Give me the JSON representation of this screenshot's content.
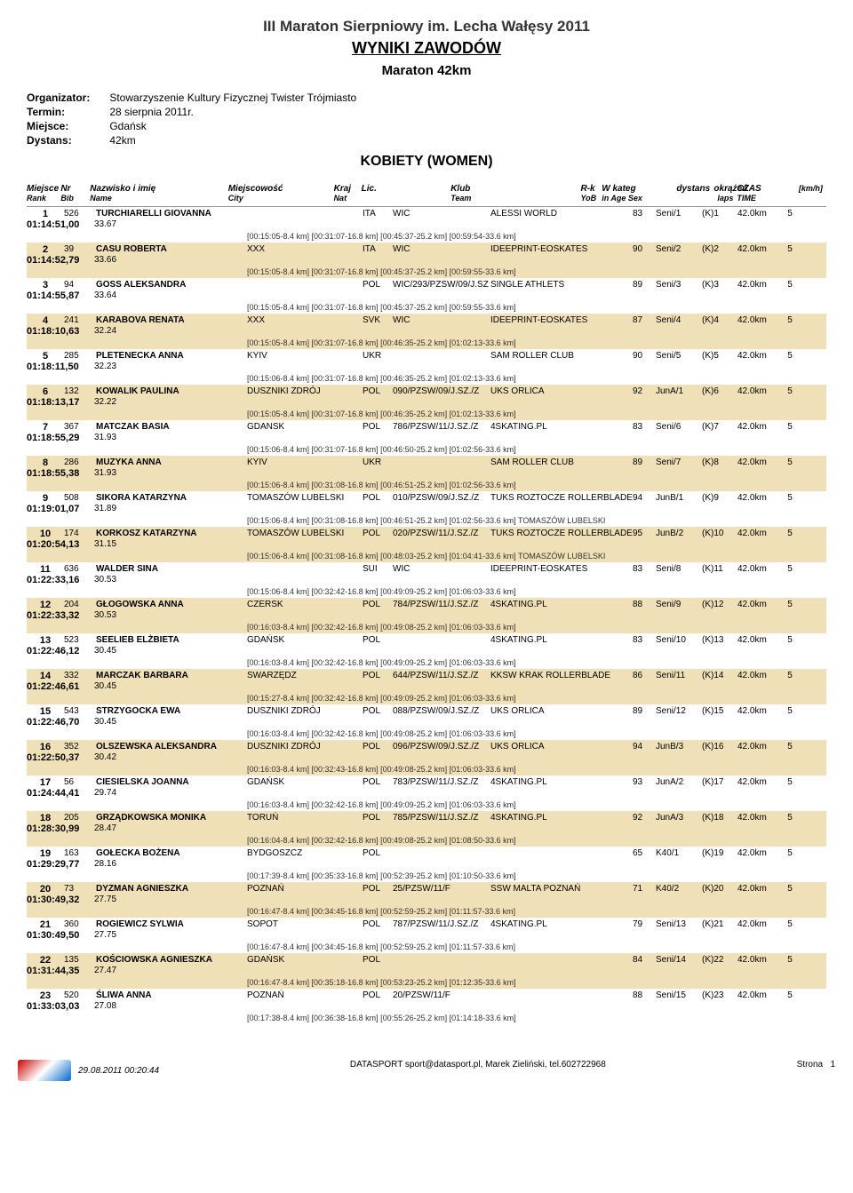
{
  "header": {
    "title": "III Maraton Sierpniowy im. Lecha Wałęsy 2011",
    "subtitle": "WYNIKI ZAWODÓW",
    "subtitle2": "Maraton 42km"
  },
  "meta": {
    "organizer_label": "Organizator:",
    "organizer": "Stowarzyszenie Kultury Fizycznej Twister Trójmiasto",
    "date_label": "Termin:",
    "date": "28 sierpnia 2011r.",
    "place_label": "Miejsce:",
    "place": "Gdańsk",
    "distance_label": "Dystans:",
    "distance": "42km"
  },
  "section_title": "KOBIETY (WOMEN)",
  "columns": {
    "rank": "Miejsce",
    "rank_sub": "Rank",
    "bib": "Nr",
    "bib_sub": "Bib",
    "name": "Nazwisko i imię",
    "name_sub": "Name",
    "city": "Miejscowość",
    "city_sub": "City",
    "nat": "Kraj",
    "nat_sub": "Nat",
    "lic": "Lic.",
    "team": "Klub",
    "team_sub": "Team",
    "yob": "R-k",
    "yob_sub": "YoB",
    "cat": "W kateg",
    "cat_sub": "in Age Sex",
    "dist": "dystans",
    "laps": "okrążeń",
    "laps_sub": "laps",
    "time": "CZAS",
    "time_sub": "TIME",
    "speed": "[km/h]"
  },
  "rows": [
    {
      "rank": "1",
      "bib": "526",
      "name": "TURCHIARELLI GIOVANNA",
      "city": "",
      "nat": "ITA",
      "lic": "WIC",
      "team": "ALESSI WORLD",
      "yob": "83",
      "cat": "Seni/1",
      "catrank": "(K)1",
      "dist": "42.0km",
      "laps": "5",
      "time": "01:14:51,00",
      "speed": "33.67",
      "splits": "[00:15:05-8.4 km] [00:31:07-16.8 km] [00:45:37-25.2 km] [00:59:54-33.6 km]"
    },
    {
      "rank": "2",
      "bib": "39",
      "name": "CASU ROBERTA",
      "city": "XXX",
      "nat": "ITA",
      "lic": "WIC",
      "team": "IDEEPRINT-EOSKATES",
      "yob": "90",
      "cat": "Seni/2",
      "catrank": "(K)2",
      "dist": "42.0km",
      "laps": "5",
      "time": "01:14:52,79",
      "speed": "33.66",
      "splits": "[00:15:05-8.4 km] [00:31:07-16.8 km] [00:45:37-25.2 km] [00:59:55-33.6 km]"
    },
    {
      "rank": "3",
      "bib": "94",
      "name": "GOSS ALEKSANDRA",
      "city": "",
      "nat": "POL",
      "lic": "WIC/293/PZSW/09/J.SZ",
      "team": "SINGLE ATHLETS",
      "yob": "89",
      "cat": "Seni/3",
      "catrank": "(K)3",
      "dist": "42.0km",
      "laps": "5",
      "time": "01:14:55,87",
      "speed": "33.64",
      "splits": "[00:15:05-8.4 km] [00:31:07-16.8 km] [00:45:37-25.2 km] [00:59:55-33.6 km]"
    },
    {
      "rank": "4",
      "bib": "241",
      "name": "KARABOVA RENATA",
      "city": "XXX",
      "nat": "SVK",
      "lic": "WIC",
      "team": "IDEEPRINT-EOSKATES",
      "yob": "87",
      "cat": "Seni/4",
      "catrank": "(K)4",
      "dist": "42.0km",
      "laps": "5",
      "time": "01:18:10,63",
      "speed": "32.24",
      "splits": "[00:15:05-8.4 km] [00:31:07-16.8 km] [00:46:35-25.2 km] [01:02:13-33.6 km]"
    },
    {
      "rank": "5",
      "bib": "285",
      "name": "PLETENECKA ANNA",
      "city": "KYIV",
      "nat": "UKR",
      "lic": "",
      "team": "SAM ROLLER CLUB",
      "yob": "90",
      "cat": "Seni/5",
      "catrank": "(K)5",
      "dist": "42.0km",
      "laps": "5",
      "time": "01:18:11,50",
      "speed": "32.23",
      "splits": "[00:15:06-8.4 km] [00:31:07-16.8 km] [00:46:35-25.2 km] [01:02:13-33.6 km]"
    },
    {
      "rank": "6",
      "bib": "132",
      "name": "KOWALIK PAULINA",
      "city": "DUSZNIKI ZDRÓJ",
      "nat": "POL",
      "lic": "090/PZSW/09/J.SZ./Z",
      "team": "UKS ORLICA",
      "yob": "92",
      "cat": "JunA/1",
      "catrank": "(K)6",
      "dist": "42.0km",
      "laps": "5",
      "time": "01:18:13,17",
      "speed": "32.22",
      "splits": "[00:15:05-8.4 km] [00:31:07-16.8 km] [00:46:35-25.2 km] [01:02:13-33.6 km]"
    },
    {
      "rank": "7",
      "bib": "367",
      "name": "MATCZAK BASIA",
      "city": "GDANSK",
      "nat": "POL",
      "lic": "786/PZSW/11/J.SZ./Z",
      "team": "4SKATING.PL",
      "yob": "83",
      "cat": "Seni/6",
      "catrank": "(K)7",
      "dist": "42.0km",
      "laps": "5",
      "time": "01:18:55,29",
      "speed": "31.93",
      "splits": "[00:15:06-8.4 km] [00:31:07-16.8 km] [00:46:50-25.2 km] [01:02:56-33.6 km]"
    },
    {
      "rank": "8",
      "bib": "286",
      "name": "MUZYKA ANNA",
      "city": "KYIV",
      "nat": "UKR",
      "lic": "",
      "team": "SAM ROLLER CLUB",
      "yob": "89",
      "cat": "Seni/7",
      "catrank": "(K)8",
      "dist": "42.0km",
      "laps": "5",
      "time": "01:18:55,38",
      "speed": "31.93",
      "splits": "[00:15:06-8.4 km] [00:31:08-16.8 km] [00:46:51-25.2 km] [01:02:56-33.6 km]"
    },
    {
      "rank": "9",
      "bib": "508",
      "name": "SIKORA KATARZYNA",
      "city": "TOMASZÓW LUBELSKI",
      "nat": "POL",
      "lic": "010/PZSW/09/J.SZ./Z",
      "team": "TUKS ROZTOCZE ROLLERBLADE",
      "yob": "94",
      "cat": "JunB/1",
      "catrank": "(K)9",
      "dist": "42.0km",
      "laps": "5",
      "time": "01:19:01,07",
      "speed": "31.89",
      "splits": "[00:15:06-8.4 km] [00:31:08-16.8 km] [00:46:51-25.2 km] [01:02:56-33.6 km] TOMASZÓW LUBELSKI"
    },
    {
      "rank": "10",
      "bib": "174",
      "name": "KORKOSZ KATARZYNA",
      "city": "TOMASZÓW LUBELSKI",
      "nat": "POL",
      "lic": "020/PZSW/11/J.SZ./Z",
      "team": "TUKS ROZTOCZE ROLLERBLADE",
      "yob": "95",
      "cat": "JunB/2",
      "catrank": "(K)10",
      "dist": "42.0km",
      "laps": "5",
      "time": "01:20:54,13",
      "speed": "31.15",
      "splits": "[00:15:06-8.4 km] [00:31:08-16.8 km] [00:48:03-25.2 km] [01:04:41-33.6 km] TOMASZÓW LUBELSKI"
    },
    {
      "rank": "11",
      "bib": "636",
      "name": "WALDER SINA",
      "city": "",
      "nat": "SUI",
      "lic": "WIC",
      "team": "IDEEPRINT-EOSKATES",
      "yob": "83",
      "cat": "Seni/8",
      "catrank": "(K)11",
      "dist": "42.0km",
      "laps": "5",
      "time": "01:22:33,16",
      "speed": "30.53",
      "splits": "[00:15:06-8.4 km] [00:32:42-16.8 km] [00:49:09-25.2 km] [01:06:03-33.6 km]"
    },
    {
      "rank": "12",
      "bib": "204",
      "name": "GŁOGOWSKA ANNA",
      "city": "CZERSK",
      "nat": "POL",
      "lic": "784/PZSW/11/J.SZ./Z",
      "team": "4SKATING.PL",
      "yob": "88",
      "cat": "Seni/9",
      "catrank": "(K)12",
      "dist": "42.0km",
      "laps": "5",
      "time": "01:22:33,32",
      "speed": "30.53",
      "splits": "[00:16:03-8.4 km] [00:32:42-16.8 km] [00:49:08-25.2 km] [01:06:03-33.6 km]"
    },
    {
      "rank": "13",
      "bib": "523",
      "name": "SEELIEB ELŻBIETA",
      "city": "GDAŃSK",
      "nat": "POL",
      "lic": "",
      "team": "4SKATING.PL",
      "yob": "83",
      "cat": "Seni/10",
      "catrank": "(K)13",
      "dist": "42.0km",
      "laps": "5",
      "time": "01:22:46,12",
      "speed": "30.45",
      "splits": "[00:16:03-8.4 km] [00:32:42-16.8 km] [00:49:09-25.2 km] [01:06:03-33.6 km]"
    },
    {
      "rank": "14",
      "bib": "332",
      "name": "MARCZAK BARBARA",
      "city": "SWARZĘDZ",
      "nat": "POL",
      "lic": "644/PZSW/11/J.SZ./Z",
      "team": "KKSW KRAK ROLLERBLADE",
      "yob": "86",
      "cat": "Seni/11",
      "catrank": "(K)14",
      "dist": "42.0km",
      "laps": "5",
      "time": "01:22:46,61",
      "speed": "30.45",
      "splits": "[00:15:27-8.4 km] [00:32:42-16.8 km] [00:49:09-25.2 km] [01:06:03-33.6 km]"
    },
    {
      "rank": "15",
      "bib": "543",
      "name": "STRZYGOCKA EWA",
      "city": "DUSZNIKI ZDRÓJ",
      "nat": "POL",
      "lic": "088/PZSW/09/J.SZ./Z",
      "team": "UKS ORLICA",
      "yob": "89",
      "cat": "Seni/12",
      "catrank": "(K)15",
      "dist": "42.0km",
      "laps": "5",
      "time": "01:22:46,70",
      "speed": "30.45",
      "splits": "[00:16:03-8.4 km] [00:32:42-16.8 km] [00:49:08-25.2 km] [01:06:03-33.6 km]"
    },
    {
      "rank": "16",
      "bib": "352",
      "name": "OLSZEWSKA ALEKSANDRA",
      "city": "DUSZNIKI ZDRÓJ",
      "nat": "POL",
      "lic": "096/PZSW/09/J.SZ./Z",
      "team": "UKS ORLICA",
      "yob": "94",
      "cat": "JunB/3",
      "catrank": "(K)16",
      "dist": "42.0km",
      "laps": "5",
      "time": "01:22:50,37",
      "speed": "30.42",
      "splits": "[00:16:03-8.4 km] [00:32:43-16.8 km] [00:49:08-25.2 km] [01:06:03-33.6 km]"
    },
    {
      "rank": "17",
      "bib": "56",
      "name": "CIESIELSKA JOANNA",
      "city": "GDAŃSK",
      "nat": "POL",
      "lic": "783/PZSW/11/J.SZ./Z",
      "team": "4SKATING.PL",
      "yob": "93",
      "cat": "JunA/2",
      "catrank": "(K)17",
      "dist": "42.0km",
      "laps": "5",
      "time": "01:24:44,41",
      "speed": "29.74",
      "splits": "[00:16:03-8.4 km] [00:32:42-16.8 km] [00:49:09-25.2 km] [01:06:03-33.6 km]"
    },
    {
      "rank": "18",
      "bib": "205",
      "name": "GRZĄDKOWSKA MONIKA",
      "city": "TORUŃ",
      "nat": "POL",
      "lic": "785/PZSW/11/J.SZ./Z",
      "team": "4SKATING.PL",
      "yob": "92",
      "cat": "JunA/3",
      "catrank": "(K)18",
      "dist": "42.0km",
      "laps": "5",
      "time": "01:28:30,99",
      "speed": "28.47",
      "splits": "[00:16:04-8.4 km] [00:32:42-16.8 km] [00:49:08-25.2 km] [01:08:50-33.6 km]"
    },
    {
      "rank": "19",
      "bib": "163",
      "name": "GOŁECKA BOŻENA",
      "city": "BYDGOSZCZ",
      "nat": "POL",
      "lic": "",
      "team": "",
      "yob": "65",
      "cat": "K40/1",
      "catrank": "(K)19",
      "dist": "42.0km",
      "laps": "5",
      "time": "01:29:29,77",
      "speed": "28.16",
      "splits": "[00:17:39-8.4 km] [00:35:33-16.8 km] [00:52:39-25.2 km] [01:10:50-33.6 km]"
    },
    {
      "rank": "20",
      "bib": "73",
      "name": "DYZMAN AGNIESZKA",
      "city": "POZNAŃ",
      "nat": "POL",
      "lic": "25/PZSW/11/F",
      "team": "SSW MALTA POZNAŃ",
      "yob": "71",
      "cat": "K40/2",
      "catrank": "(K)20",
      "dist": "42.0km",
      "laps": "5",
      "time": "01:30:49,32",
      "speed": "27.75",
      "splits": "[00:16:47-8.4 km] [00:34:45-16.8 km] [00:52:59-25.2 km] [01:11:57-33.6 km]"
    },
    {
      "rank": "21",
      "bib": "360",
      "name": "ROGIEWICZ SYLWIA",
      "city": "SOPOT",
      "nat": "POL",
      "lic": "787/PZSW/11/J.SZ./Z",
      "team": "4SKATING.PL",
      "yob": "79",
      "cat": "Seni/13",
      "catrank": "(K)21",
      "dist": "42.0km",
      "laps": "5",
      "time": "01:30:49,50",
      "speed": "27.75",
      "splits": "[00:16:47-8.4 km] [00:34:45-16.8 km] [00:52:59-25.2 km] [01:11:57-33.6 km]"
    },
    {
      "rank": "22",
      "bib": "135",
      "name": "KOŚCIOWSKA AGNIESZKA",
      "city": "GDAŃSK",
      "nat": "POL",
      "lic": "",
      "team": "",
      "yob": "84",
      "cat": "Seni/14",
      "catrank": "(K)22",
      "dist": "42.0km",
      "laps": "5",
      "time": "01:31:44,35",
      "speed": "27.47",
      "splits": "[00:16:47-8.4 km] [00:35:18-16.8 km] [00:53:23-25.2 km] [01:12:35-33.6 km]"
    },
    {
      "rank": "23",
      "bib": "520",
      "name": "ŚLIWA ANNA",
      "city": "POZNAŃ",
      "nat": "POL",
      "lic": "20/PZSW/11/F",
      "team": "",
      "yob": "88",
      "cat": "Seni/15",
      "catrank": "(K)23",
      "dist": "42.0km",
      "laps": "5",
      "time": "01:33:03,03",
      "speed": "27.08",
      "splits": "[00:17:38-8.4 km] [00:36:38-16.8 km] [00:55:26-25.2 km] [01:14:18-33.6 km]"
    }
  ],
  "footer": {
    "timestamp": "29.08.2011 00:20:44",
    "center": "DATASPORT sport@datasport.pl, Marek Zieliński, tel.602722968",
    "page_label": "Strona",
    "page_num": "1"
  },
  "colors": {
    "even_row": "#f0e0b8",
    "text": "#000000",
    "bg": "#ffffff"
  }
}
